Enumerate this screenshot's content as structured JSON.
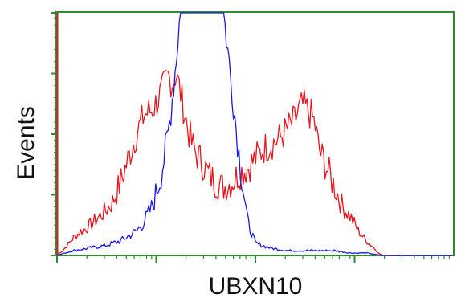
{
  "chart_data": {
    "type": "line",
    "title": "",
    "xlabel": "UBXN10",
    "ylabel": "Events",
    "x_scale": "log",
    "xlim": [
      0,
      100
    ],
    "ylim": [
      0,
      100
    ],
    "grid": false,
    "legend": "none",
    "colors": {
      "frame": "#2e8b2e",
      "ticks": "#2e8b2e",
      "series_red": "#e8141c",
      "series_blue": "#1a1adf",
      "y_axis_left_edge": "#d42020"
    },
    "series": [
      {
        "color": "#e8141c",
        "x": [
          0,
          2,
          4,
          6,
          8,
          10,
          12,
          14,
          16,
          18,
          20,
          22,
          24,
          26,
          27,
          28,
          29,
          30,
          31,
          32,
          33,
          34,
          35,
          36,
          38,
          40,
          42,
          44,
          46,
          48,
          50,
          52,
          54,
          56,
          58,
          60,
          61,
          62,
          63,
          64,
          65,
          66,
          68,
          70,
          72,
          74,
          76,
          78,
          80,
          81,
          82,
          84,
          86,
          88,
          90,
          92,
          95,
          98,
          100
        ],
        "y": [
          0,
          3,
          7,
          10,
          12,
          15,
          18,
          22,
          30,
          40,
          50,
          58,
          60,
          66,
          70,
          74,
          71,
          75,
          68,
          60,
          52,
          46,
          42,
          40,
          34,
          30,
          28,
          30,
          34,
          36,
          40,
          44,
          46,
          48,
          52,
          56,
          60,
          62,
          60,
          58,
          54,
          44,
          36,
          28,
          20,
          16,
          10,
          6,
          3,
          1,
          0,
          0,
          0,
          0,
          0,
          0,
          0,
          0,
          0
        ]
      },
      {
        "color": "#1a1adf",
        "x": [
          0,
          4,
          8,
          12,
          16,
          20,
          22,
          24,
          26,
          27,
          28,
          29,
          30,
          31,
          32,
          33,
          34,
          35,
          36,
          37,
          38,
          39,
          40,
          41,
          42,
          44,
          46,
          48,
          50,
          54,
          58,
          62,
          66,
          70,
          74,
          78,
          82,
          86,
          90,
          95,
          100
        ],
        "y": [
          0,
          2,
          3,
          4,
          6,
          10,
          14,
          20,
          32,
          40,
          50,
          64,
          80,
          100,
          100,
          100,
          100,
          100,
          100,
          100,
          100,
          100,
          100,
          100,
          100,
          70,
          40,
          14,
          5,
          3,
          2,
          2,
          2,
          2,
          1,
          1,
          0,
          0,
          0,
          0,
          0
        ]
      }
    ]
  }
}
